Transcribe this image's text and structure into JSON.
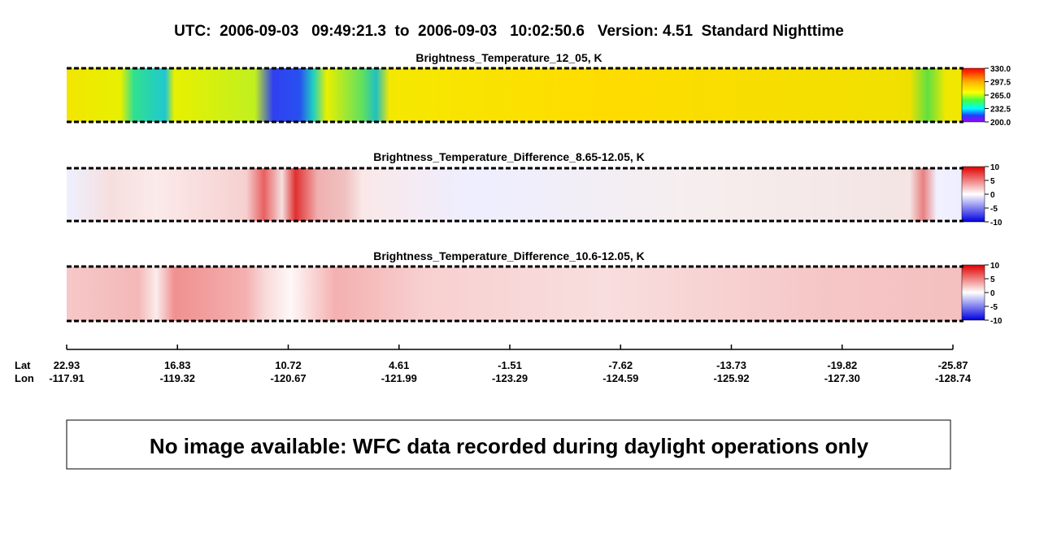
{
  "title": "UTC:  2006-09-03   09:49:21.3  to  2006-09-03   10:02:50.6   Version: 4.51  Standard Nighttime",
  "panels": [
    {
      "title": "Brightness_Temperature_12_05, K",
      "colorbar_labels": [
        "330.0",
        "297.5",
        "265.0",
        "232.5",
        "200.0"
      ]
    },
    {
      "title": "Brightness_Temperature_Difference_8.65-12.05, K",
      "colorbar_labels": [
        "10",
        "5",
        "0",
        "-5",
        "-10"
      ]
    },
    {
      "title": "Brightness_Temperature_Difference_10.6-12.05, K",
      "colorbar_labels": [
        "10",
        "5",
        "0",
        "-5",
        "-10"
      ]
    }
  ],
  "axis": {
    "lat_label": "Lat",
    "lon_label": "Lon",
    "lat": [
      "22.93",
      "16.83",
      "10.72",
      "4.61",
      "-1.51",
      "-7.62",
      "-13.73",
      "-19.82",
      "-25.87"
    ],
    "lon": [
      "-117.91",
      "-119.32",
      "-120.67",
      "-121.99",
      "-123.29",
      "-124.59",
      "-125.92",
      "-127.30",
      "-128.74"
    ]
  },
  "note": "No image available: WFC data recorded during daylight operations only"
}
